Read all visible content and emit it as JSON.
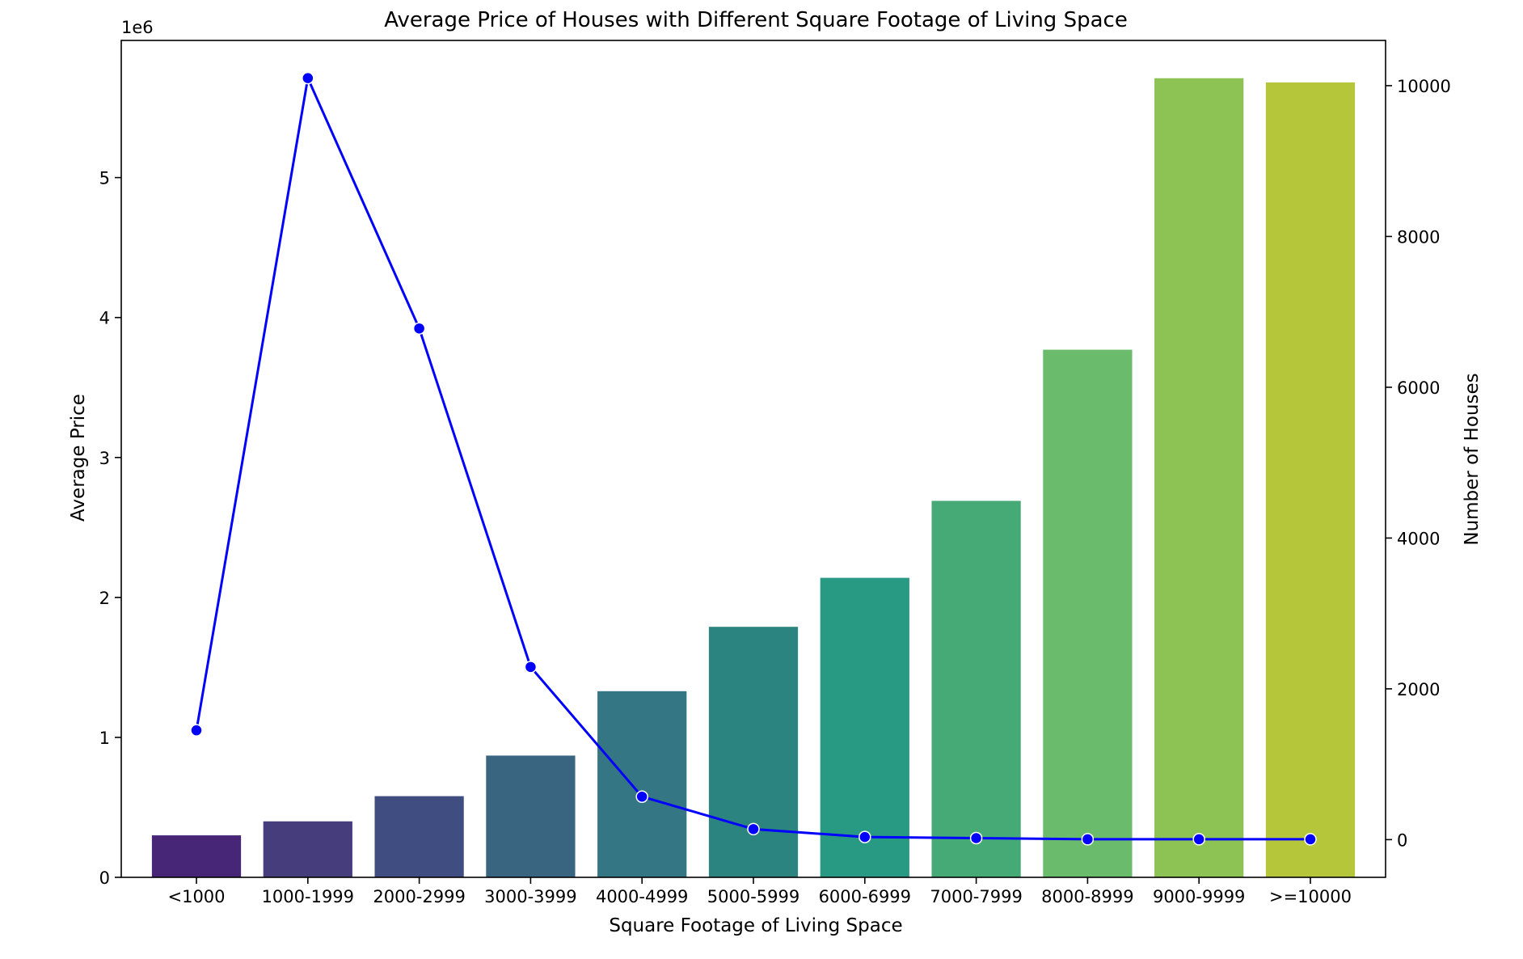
{
  "chart_data": {
    "type": "bar+line",
    "title": "Average Price of Houses with Different Square Footage of Living Space",
    "xlabel": "Square Footage of Living Space",
    "ylabel_left": "Average Price",
    "ylabel_right": "Number of Houses",
    "left_axis_offset_label": "1e6",
    "categories": [
      "<1000",
      "1000-1999",
      "2000-2999",
      "3000-3999",
      "4000-4999",
      "5000-5999",
      "6000-6999",
      "7000-7999",
      "8000-8999",
      "9000-9999",
      ">=10000"
    ],
    "left_ylim": [
      0,
      5.98
    ],
    "left_yticks": [
      0,
      1,
      2,
      3,
      4,
      5
    ],
    "right_ylim": [
      -500,
      10600
    ],
    "right_yticks": [
      0,
      2000,
      4000,
      6000,
      8000,
      10000
    ],
    "series": [
      {
        "name": "Average Price",
        "kind": "bar",
        "axis": "left",
        "values": [
          0.3,
          0.4,
          0.58,
          0.87,
          1.33,
          1.79,
          2.14,
          2.69,
          3.77,
          5.71,
          5.68
        ],
        "colors": [
          "#482677",
          "#463d7d",
          "#3f4d80",
          "#3a6580",
          "#347683",
          "#2c8480",
          "#289a83",
          "#46aa77",
          "#6bbb6d",
          "#8dc255",
          "#b5c63a"
        ]
      },
      {
        "name": "Number of Houses",
        "kind": "line",
        "axis": "right",
        "color": "#0000ff",
        "values": [
          1450,
          10100,
          6780,
          2290,
          570,
          140,
          35,
          20,
          5,
          5,
          5
        ]
      }
    ],
    "grid": false,
    "legend": "none"
  }
}
